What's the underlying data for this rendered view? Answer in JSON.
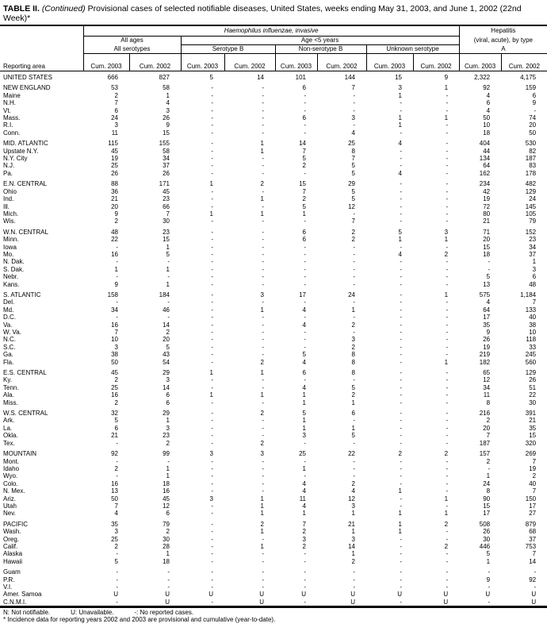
{
  "title": {
    "prefix": "TABLE II. ",
    "continued": "(Continued)",
    "text": " Provisional cases of selected notifiable diseases, United States, weeks ending May 31, 2003, and June 1, 2002 (22nd Week)*"
  },
  "header": {
    "disease1": "Haemophilus influenzae, invasive",
    "suffix1": "",
    "hepatitis": "Hepatitis",
    "hepatitis_sub": "(viral, acute), by type",
    "all_ages": "All ages",
    "all_serotypes": "All serotypes",
    "age_lt5": "Age <5 years",
    "serotype_b": "Serotype B",
    "non_serotype_b": "Non-serotype B",
    "unknown_serotype": "Unknown serotype",
    "type_a": "A",
    "reporting_area": "Reporting area",
    "cum": [
      "Cum. 2003",
      "Cum. 2002",
      "Cum. 2003",
      "Cum. 2002",
      "Cum. 2003",
      "Cum. 2002",
      "Cum. 2003",
      "Cum. 2002",
      "Cum. 2003",
      "Cum. 2002"
    ]
  },
  "groups": [
    {
      "rows": [
        [
          "UNITED STATES",
          "666",
          "827",
          "5",
          "14",
          "101",
          "144",
          "15",
          "9",
          "2,322",
          "4,175"
        ]
      ]
    },
    {
      "rows": [
        [
          "NEW ENGLAND",
          "53",
          "58",
          "-",
          "-",
          "6",
          "7",
          "3",
          "1",
          "92",
          "159"
        ],
        [
          "Maine",
          "2",
          "1",
          "-",
          "-",
          "-",
          "-",
          "1",
          "-",
          "4",
          "6"
        ],
        [
          "N.H.",
          "7",
          "4",
          "-",
          "-",
          "-",
          "-",
          "-",
          "-",
          "6",
          "9"
        ],
        [
          "Vt.",
          "6",
          "3",
          "-",
          "-",
          "-",
          "-",
          "-",
          "-",
          "4",
          "-"
        ],
        [
          "Mass.",
          "24",
          "26",
          "-",
          "-",
          "6",
          "3",
          "1",
          "1",
          "50",
          "74"
        ],
        [
          "R.I.",
          "3",
          "9",
          "-",
          "-",
          "-",
          "-",
          "1",
          "-",
          "10",
          "20"
        ],
        [
          "Conn.",
          "11",
          "15",
          "-",
          "-",
          "-",
          "4",
          "-",
          "-",
          "18",
          "50"
        ]
      ]
    },
    {
      "rows": [
        [
          "MID. ATLANTIC",
          "115",
          "155",
          "-",
          "1",
          "14",
          "25",
          "4",
          "-",
          "404",
          "530"
        ],
        [
          "Upstate N.Y.",
          "45",
          "58",
          "-",
          "1",
          "7",
          "8",
          "-",
          "-",
          "44",
          "82"
        ],
        [
          "N.Y. City",
          "19",
          "34",
          "-",
          "-",
          "5",
          "7",
          "-",
          "-",
          "134",
          "187"
        ],
        [
          "N.J.",
          "25",
          "37",
          "-",
          "-",
          "2",
          "5",
          "-",
          "-",
          "64",
          "83"
        ],
        [
          "Pa.",
          "26",
          "26",
          "-",
          "-",
          "-",
          "5",
          "4",
          "-",
          "162",
          "178"
        ]
      ]
    },
    {
      "rows": [
        [
          "E.N. CENTRAL",
          "88",
          "171",
          "1",
          "2",
          "15",
          "29",
          "-",
          "-",
          "234",
          "482"
        ],
        [
          "Ohio",
          "36",
          "45",
          "-",
          "-",
          "7",
          "5",
          "-",
          "-",
          "42",
          "129"
        ],
        [
          "Ind.",
          "21",
          "23",
          "-",
          "1",
          "2",
          "5",
          "-",
          "-",
          "19",
          "24"
        ],
        [
          "Ill.",
          "20",
          "66",
          "-",
          "-",
          "5",
          "12",
          "-",
          "-",
          "72",
          "145"
        ],
        [
          "Mich.",
          "9",
          "7",
          "1",
          "1",
          "1",
          "-",
          "-",
          "-",
          "80",
          "105"
        ],
        [
          "Wis.",
          "2",
          "30",
          "-",
          "-",
          "-",
          "7",
          "-",
          "-",
          "21",
          "79"
        ]
      ]
    },
    {
      "rows": [
        [
          "W.N. CENTRAL",
          "48",
          "23",
          "-",
          "-",
          "6",
          "2",
          "5",
          "3",
          "71",
          "152"
        ],
        [
          "Minn.",
          "22",
          "15",
          "-",
          "-",
          "6",
          "2",
          "1",
          "1",
          "20",
          "23"
        ],
        [
          "Iowa",
          "-",
          "1",
          "-",
          "-",
          "-",
          "-",
          "-",
          "-",
          "15",
          "34"
        ],
        [
          "Mo.",
          "16",
          "5",
          "-",
          "-",
          "-",
          "-",
          "4",
          "2",
          "18",
          "37"
        ],
        [
          "N. Dak.",
          "-",
          "-",
          "-",
          "-",
          "-",
          "-",
          "-",
          "-",
          "-",
          "1"
        ],
        [
          "S. Dak.",
          "1",
          "1",
          "-",
          "-",
          "-",
          "-",
          "-",
          "-",
          "-",
          "3"
        ],
        [
          "Nebr.",
          "-",
          "-",
          "-",
          "-",
          "-",
          "-",
          "-",
          "-",
          "5",
          "6"
        ],
        [
          "Kans.",
          "9",
          "1",
          "-",
          "-",
          "-",
          "-",
          "-",
          "-",
          "13",
          "48"
        ]
      ]
    },
    {
      "rows": [
        [
          "S. ATLANTIC",
          "158",
          "184",
          "-",
          "3",
          "17",
          "24",
          "-",
          "1",
          "575",
          "1,184"
        ],
        [
          "Del.",
          "-",
          "-",
          "-",
          "-",
          "-",
          "-",
          "-",
          "-",
          "4",
          "7"
        ],
        [
          "Md.",
          "34",
          "46",
          "-",
          "1",
          "4",
          "1",
          "-",
          "-",
          "64",
          "133"
        ],
        [
          "D.C.",
          "-",
          "-",
          "-",
          "-",
          "-",
          "-",
          "-",
          "-",
          "17",
          "40"
        ],
        [
          "Va.",
          "16",
          "14",
          "-",
          "-",
          "4",
          "2",
          "-",
          "-",
          "35",
          "38"
        ],
        [
          "W. Va.",
          "7",
          "2",
          "-",
          "-",
          "-",
          "-",
          "-",
          "-",
          "9",
          "10"
        ],
        [
          "N.C.",
          "10",
          "20",
          "-",
          "-",
          "-",
          "3",
          "-",
          "-",
          "26",
          "118"
        ],
        [
          "S.C.",
          "3",
          "5",
          "-",
          "-",
          "-",
          "2",
          "-",
          "-",
          "19",
          "33"
        ],
        [
          "Ga.",
          "38",
          "43",
          "-",
          "-",
          "5",
          "8",
          "-",
          "-",
          "219",
          "245"
        ],
        [
          "Fla.",
          "50",
          "54",
          "-",
          "2",
          "4",
          "8",
          "-",
          "1",
          "182",
          "560"
        ]
      ]
    },
    {
      "rows": [
        [
          "E.S. CENTRAL",
          "45",
          "29",
          "1",
          "1",
          "6",
          "8",
          "-",
          "-",
          "65",
          "129"
        ],
        [
          "Ky.",
          "2",
          "3",
          "-",
          "-",
          "-",
          "-",
          "-",
          "-",
          "12",
          "26"
        ],
        [
          "Tenn.",
          "25",
          "14",
          "-",
          "-",
          "4",
          "5",
          "-",
          "-",
          "34",
          "51"
        ],
        [
          "Ala.",
          "16",
          "6",
          "1",
          "1",
          "1",
          "2",
          "-",
          "-",
          "11",
          "22"
        ],
        [
          "Miss.",
          "2",
          "6",
          "-",
          "-",
          "1",
          "1",
          "-",
          "-",
          "8",
          "30"
        ]
      ]
    },
    {
      "rows": [
        [
          "W.S. CENTRAL",
          "32",
          "29",
          "-",
          "2",
          "5",
          "6",
          "-",
          "-",
          "216",
          "391"
        ],
        [
          "Ark.",
          "5",
          "1",
          "-",
          "-",
          "1",
          "-",
          "-",
          "-",
          "2",
          "21"
        ],
        [
          "La.",
          "6",
          "3",
          "-",
          "-",
          "1",
          "1",
          "-",
          "-",
          "20",
          "35"
        ],
        [
          "Okla.",
          "21",
          "23",
          "-",
          "-",
          "3",
          "5",
          "-",
          "-",
          "7",
          "15"
        ],
        [
          "Tex.",
          "-",
          "2",
          "-",
          "2",
          "-",
          "-",
          "-",
          "-",
          "187",
          "320"
        ]
      ]
    },
    {
      "rows": [
        [
          "MOUNTAIN",
          "92",
          "99",
          "3",
          "3",
          "25",
          "22",
          "2",
          "2",
          "157",
          "269"
        ],
        [
          "Mont.",
          "-",
          "-",
          "-",
          "-",
          "-",
          "-",
          "-",
          "-",
          "2",
          "7"
        ],
        [
          "Idaho",
          "2",
          "1",
          "-",
          "-",
          "1",
          "-",
          "-",
          "-",
          "-",
          "19"
        ],
        [
          "Wyo.",
          "-",
          "1",
          "-",
          "-",
          "-",
          "-",
          "-",
          "-",
          "1",
          "2"
        ],
        [
          "Colo.",
          "16",
          "18",
          "-",
          "-",
          "4",
          "2",
          "-",
          "-",
          "24",
          "40"
        ],
        [
          "N. Mex.",
          "13",
          "16",
          "-",
          "-",
          "4",
          "4",
          "1",
          "-",
          "8",
          "7"
        ],
        [
          "Ariz.",
          "50",
          "45",
          "3",
          "1",
          "11",
          "12",
          "-",
          "1",
          "90",
          "150"
        ],
        [
          "Utah",
          "7",
          "12",
          "-",
          "1",
          "4",
          "3",
          "-",
          "-",
          "15",
          "17"
        ],
        [
          "Nev.",
          "4",
          "6",
          "-",
          "1",
          "1",
          "1",
          "1",
          "1",
          "17",
          "27"
        ]
      ]
    },
    {
      "rows": [
        [
          "PACIFIC",
          "35",
          "79",
          "-",
          "2",
          "7",
          "21",
          "1",
          "2",
          "508",
          "879"
        ],
        [
          "Wash.",
          "3",
          "2",
          "-",
          "1",
          "2",
          "1",
          "1",
          "-",
          "26",
          "68"
        ],
        [
          "Oreg.",
          "25",
          "30",
          "-",
          "-",
          "3",
          "3",
          "-",
          "-",
          "30",
          "37"
        ],
        [
          "Calif.",
          "2",
          "28",
          "-",
          "1",
          "2",
          "14",
          "-",
          "2",
          "446",
          "753"
        ],
        [
          "Alaska",
          "-",
          "1",
          "-",
          "-",
          "-",
          "1",
          "-",
          "-",
          "5",
          "7"
        ],
        [
          "Hawaii",
          "5",
          "18",
          "-",
          "-",
          "-",
          "2",
          "-",
          "-",
          "1",
          "14"
        ]
      ]
    },
    {
      "rows": [
        [
          "Guam",
          "-",
          "-",
          "-",
          "-",
          "-",
          "-",
          "-",
          "-",
          "-",
          "-"
        ],
        [
          "P.R.",
          "-",
          "-",
          "-",
          "-",
          "-",
          "-",
          "-",
          "-",
          "9",
          "92"
        ],
        [
          "V.I.",
          "-",
          "-",
          "-",
          "-",
          "-",
          "-",
          "-",
          "-",
          "-",
          "-"
        ],
        [
          "Amer. Samoa",
          "U",
          "U",
          "U",
          "U",
          "U",
          "U",
          "U",
          "U",
          "U",
          "U"
        ],
        [
          "C.N.M.I.",
          "-",
          "U",
          "-",
          "U",
          "-",
          "U",
          "-",
          "U",
          "-",
          "U"
        ]
      ]
    }
  ],
  "footnotes": {
    "legend": [
      "N: Not notifiable.",
      "U: Unavailable.",
      "-: No reported cases."
    ],
    "note": "* Incidence data for reporting years 2002 and 2003 are provisional and cumulative (year-to-date)."
  }
}
